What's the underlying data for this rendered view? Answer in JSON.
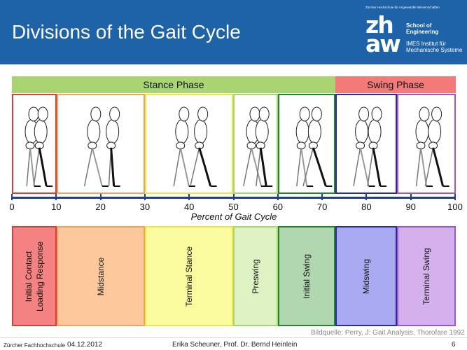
{
  "header": {
    "title": "Divisions of the Gait Cycle",
    "logo_small": "Zürcher Hochschule für Angewandte Wissenschaften",
    "logo_mark_line1": "zh",
    "logo_mark_line2": "aw",
    "logo_school": "School of Engineering",
    "logo_imes": "IMES Institut für Mechanische Systeme"
  },
  "phases": {
    "stance": "Stance Phase",
    "swing": "Swing Phase"
  },
  "axis": {
    "label": "Percent of Gait Cycle",
    "ticks": [
      "0",
      "10",
      "20",
      "30",
      "40",
      "50",
      "60",
      "70",
      "80",
      "90",
      "100"
    ]
  },
  "divisions": [
    {
      "line1": "Initial Contact",
      "line2": "Loading Response",
      "color": "#f48282",
      "border": "#e03a3a"
    },
    {
      "line1": "Midstance",
      "line2": "",
      "color": "#fcc89c",
      "border": "#f4a060"
    },
    {
      "line1": "Terminal Stance",
      "line2": "",
      "color": "#fbfba0",
      "border": "#e8e840"
    },
    {
      "line1": "Preswing",
      "line2": "",
      "color": "#dff2c4",
      "border": "#a8d572"
    },
    {
      "line1": "Initial Swing",
      "line2": "",
      "color": "#b0d7b0",
      "border": "#1a8a2a"
    },
    {
      "line1": "Midswing",
      "line2": "",
      "color": "#aaaaf2",
      "border": "#2a2aa8"
    },
    {
      "line1": "Terminal Swing",
      "line2": "",
      "color": "#d4b0ec",
      "border": "#9a56d0"
    }
  ],
  "credit": "Bildquelle: Perry, J: Gait Analysis, Thorofare 1992",
  "footer": {
    "org": "Zürcher Fachhochschule",
    "date": "04.12.2012",
    "authors": "Erika Scheuner, Prof. Dr. Bernd Heinlein",
    "page": "6"
  },
  "icons": {
    "figures": "walking-figure-icon"
  }
}
